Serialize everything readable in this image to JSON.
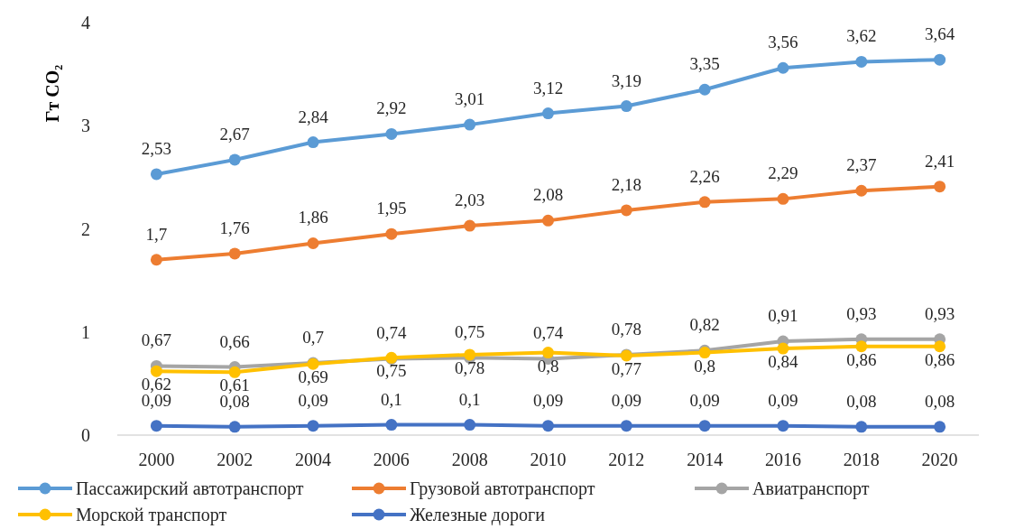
{
  "chart_data": {
    "type": "line",
    "ylabel": "Гт CO₂",
    "categories": [
      "2000",
      "2002",
      "2004",
      "2006",
      "2008",
      "2010",
      "2012",
      "2014",
      "2016",
      "2018",
      "2020"
    ],
    "ylim": [
      0,
      4
    ],
    "yticks": [
      0,
      1,
      2,
      3,
      4
    ],
    "grid": false,
    "legend": "bottom",
    "marker": "circle",
    "line_style": "solid",
    "series": [
      {
        "name": "Пассажирский автотранспорт",
        "color": "#5b9bd5",
        "values": [
          2.53,
          2.67,
          2.84,
          2.92,
          3.01,
          3.12,
          3.19,
          3.35,
          3.56,
          3.62,
          3.64
        ],
        "value_labels": [
          "2,53",
          "2,67",
          "2,84",
          "2,92",
          "3,01",
          "3,12",
          "3,19",
          "3,35",
          "3,56",
          "3,62",
          "3,64"
        ]
      },
      {
        "name": "Грузовой автотранспорт",
        "color": "#ed7d31",
        "values": [
          1.7,
          1.76,
          1.86,
          1.95,
          2.03,
          2.08,
          2.18,
          2.26,
          2.29,
          2.37,
          2.41
        ],
        "value_labels": [
          "1,7",
          "1,76",
          "1,86",
          "1,95",
          "2,03",
          "2,08",
          "2,18",
          "2,26",
          "2,29",
          "2,37",
          "2,41"
        ]
      },
      {
        "name": "Авиатранспорт",
        "color": "#a5a5a5",
        "values": [
          0.67,
          0.66,
          0.7,
          0.74,
          0.75,
          0.74,
          0.78,
          0.82,
          0.91,
          0.93,
          0.93
        ],
        "value_labels": [
          "0,67",
          "0,66",
          "0,7",
          "0,74",
          "0,75",
          "0,74",
          "0,78",
          "0,82",
          "0,91",
          "0,93",
          "0,93"
        ]
      },
      {
        "name": "Морской транспорт",
        "color": "#ffc000",
        "values": [
          0.62,
          0.61,
          0.69,
          0.75,
          0.78,
          0.8,
          0.77,
          0.8,
          0.84,
          0.86,
          0.86
        ],
        "value_labels": [
          "0,62",
          "0,61",
          "0,69",
          "0,75",
          "0,78",
          "0,8",
          "0,77",
          "0,8",
          "0,84",
          "0,86",
          "0,86"
        ]
      },
      {
        "name": "Железные дороги",
        "color": "#4472c4",
        "values": [
          0.09,
          0.08,
          0.09,
          0.1,
          0.1,
          0.09,
          0.09,
          0.09,
          0.09,
          0.08,
          0.08
        ],
        "value_labels": [
          "0,09",
          "0,08",
          "0,09",
          "0,1",
          "0,1",
          "0,09",
          "0,09",
          "0,09",
          "0,09",
          "0,08",
          "0,08"
        ]
      }
    ]
  }
}
